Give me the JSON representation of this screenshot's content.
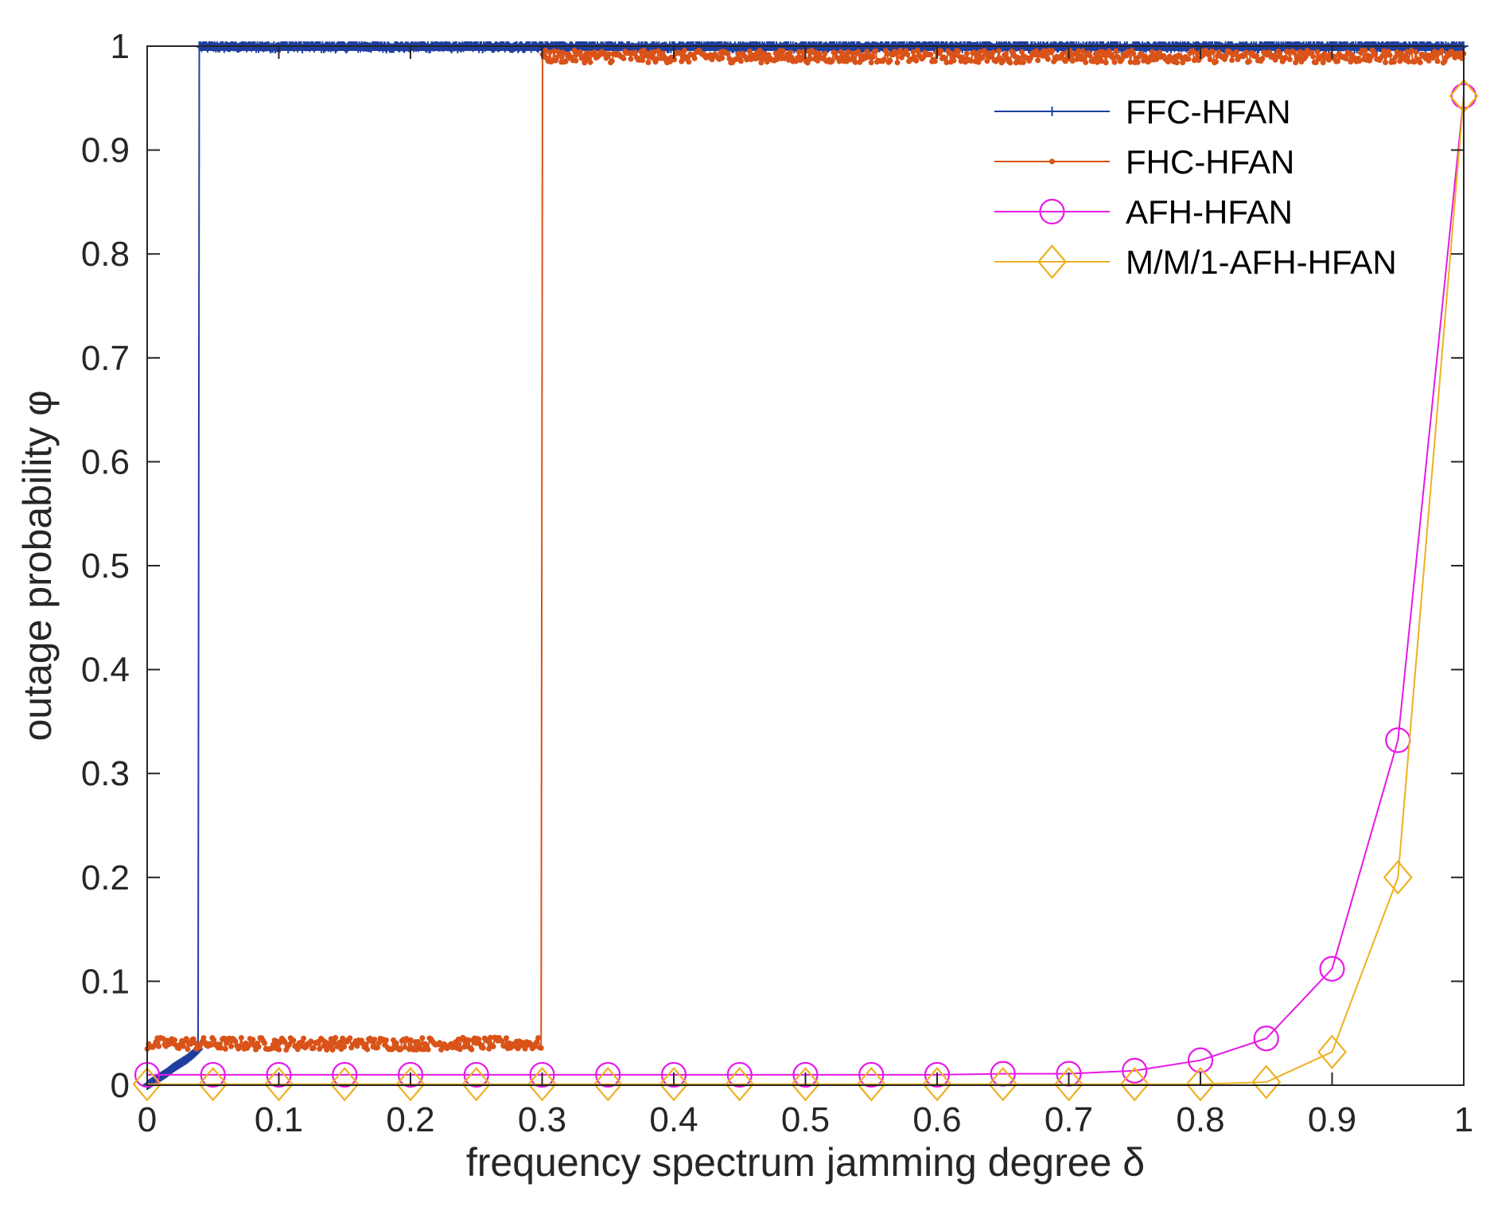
{
  "chart_data": {
    "type": "line",
    "title": "",
    "xlabel": "frequency spectrum jamming degree δ",
    "ylabel": "outage probability φ",
    "xlim": [
      0,
      1
    ],
    "ylim": [
      0,
      1
    ],
    "xticks": [
      0,
      0.1,
      0.2,
      0.3,
      0.4,
      0.5,
      0.6,
      0.7,
      0.8,
      0.9,
      1
    ],
    "xtick_labels": [
      "0",
      "0.1",
      "0.2",
      "0.3",
      "0.4",
      "0.5",
      "0.6",
      "0.7",
      "0.8",
      "0.9",
      "1"
    ],
    "yticks": [
      0,
      0.1,
      0.2,
      0.3,
      0.4,
      0.5,
      0.6,
      0.7,
      0.8,
      0.9,
      1
    ],
    "ytick_labels": [
      "0",
      "0.1",
      "0.2",
      "0.3",
      "0.4",
      "0.5",
      "0.6",
      "0.7",
      "0.8",
      "0.9",
      "1"
    ],
    "grid": false,
    "legend_position": "top-right",
    "series": [
      {
        "name": "FFC-HFAN",
        "color": "#1f3f9f",
        "marker": "plus",
        "x": [
          0,
          0.005,
          0.01,
          0.015,
          0.02,
          0.025,
          0.03,
          0.035,
          0.039,
          0.04,
          0.1,
          0.2,
          0.3,
          0.4,
          0.5,
          0.6,
          0.7,
          0.8,
          0.9,
          1.0
        ],
        "y": [
          0.0,
          0.004,
          0.008,
          0.012,
          0.017,
          0.021,
          0.025,
          0.03,
          0.035,
          1.0,
          1.0,
          1.0,
          1.0,
          1.0,
          1.0,
          1.0,
          1.0,
          1.0,
          1.0,
          1.0
        ]
      },
      {
        "name": "FHC-HFAN",
        "color": "#d95319",
        "marker": "dot",
        "x": [
          0,
          0.05,
          0.1,
          0.15,
          0.2,
          0.25,
          0.299,
          0.3,
          0.4,
          0.5,
          0.6,
          0.7,
          0.8,
          0.9,
          1.0
        ],
        "y": [
          0.04,
          0.04,
          0.04,
          0.04,
          0.04,
          0.04,
          0.04,
          0.99,
          0.99,
          0.99,
          0.99,
          0.99,
          0.99,
          0.99,
          0.99
        ]
      },
      {
        "name": "AFH-HFAN",
        "color": "#e619e6",
        "marker": "circle",
        "x": [
          0,
          0.05,
          0.1,
          0.15,
          0.2,
          0.25,
          0.3,
          0.35,
          0.4,
          0.45,
          0.5,
          0.55,
          0.6,
          0.65,
          0.7,
          0.75,
          0.8,
          0.85,
          0.9,
          0.95,
          1.0
        ],
        "y": [
          0.01,
          0.01,
          0.01,
          0.01,
          0.01,
          0.01,
          0.01,
          0.01,
          0.01,
          0.01,
          0.01,
          0.01,
          0.01,
          0.011,
          0.011,
          0.014,
          0.024,
          0.045,
          0.112,
          0.332,
          0.952
        ]
      },
      {
        "name": "M/M/1-AFH-HFAN",
        "color": "#edb120",
        "marker": "diamond",
        "x": [
          0,
          0.05,
          0.1,
          0.15,
          0.2,
          0.25,
          0.3,
          0.35,
          0.4,
          0.45,
          0.5,
          0.55,
          0.6,
          0.65,
          0.7,
          0.75,
          0.8,
          0.85,
          0.9,
          0.95,
          1.0
        ],
        "y": [
          0.001,
          0.001,
          0.001,
          0.001,
          0.001,
          0.001,
          0.001,
          0.001,
          0.001,
          0.001,
          0.001,
          0.001,
          0.001,
          0.001,
          0.001,
          0.001,
          0.001,
          0.003,
          0.032,
          0.2,
          0.952
        ]
      }
    ]
  }
}
